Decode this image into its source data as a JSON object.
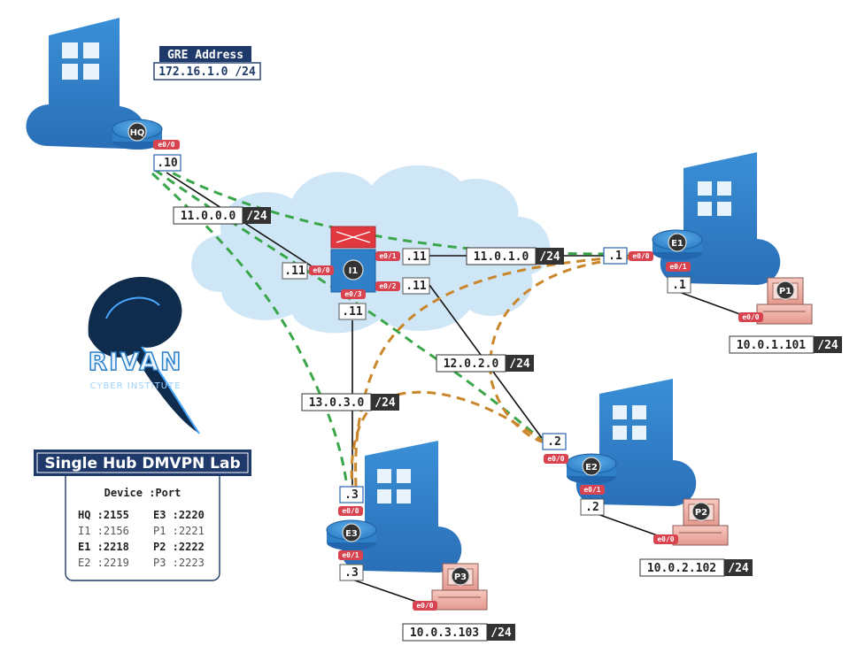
{
  "gre": {
    "title": "GRE Address",
    "network": "172.16.1.0 /24"
  },
  "lab": {
    "title": "Single Hub DMVPN Lab",
    "header": "Device :Port",
    "rows": [
      {
        "left": "HQ :2155",
        "right": "E3 :2220",
        "bold": true
      },
      {
        "left": "I1 :2156",
        "right": "P1 :2221",
        "bold": false
      },
      {
        "left": "E1 :2218",
        "right": "P2 :2222",
        "bold": true
      },
      {
        "left": "E2 :2219",
        "right": "P3 :2223",
        "bold": false
      }
    ]
  },
  "logo": {
    "name": "RIVAN",
    "subtitle": "CYBER INSTITUTE"
  },
  "devices": {
    "hq": "HQ",
    "i1": "I1",
    "e1": "E1",
    "e2": "E2",
    "e3": "E3",
    "p1": "P1",
    "p2": "P2",
    "p3": "P3"
  },
  "networks": {
    "n1": {
      "addr": "11.0.0.0",
      "mask": "/24"
    },
    "n2": {
      "addr": "11.0.1.0",
      "mask": "/24"
    },
    "n3": {
      "addr": "12.0.2.0",
      "mask": "/24"
    },
    "n4": {
      "addr": "13.0.3.0",
      "mask": "/24"
    }
  },
  "lans": {
    "p1": {
      "addr": "10.0.1.101",
      "mask": "/24"
    },
    "p2": {
      "addr": "10.0.2.102",
      "mask": "/24"
    },
    "p3": {
      "addr": "10.0.3.103",
      "mask": "/24"
    }
  },
  "ips": {
    "hq": ".10",
    "i1_e00": ".11",
    "i1_e01": ".11",
    "i1_e02": ".11",
    "i1_e03": ".11",
    "e1_e00": ".1",
    "e1_e01": ".1",
    "e2_e00": ".2",
    "e2_e01": ".2",
    "e3_e00": ".3",
    "e3_e01": ".3"
  },
  "ports": {
    "e00": "e0/0",
    "e01": "e0/1",
    "e02": "e0/2",
    "e03": "e0/3"
  },
  "colors": {
    "brand": "#2c79c0",
    "cloud": "#cfe6f6",
    "gre_tunnel": "#3aa64a",
    "dmvpn_tunnel": "#c9862a",
    "port": "#d9434f",
    "firewall": "#e0383e"
  }
}
